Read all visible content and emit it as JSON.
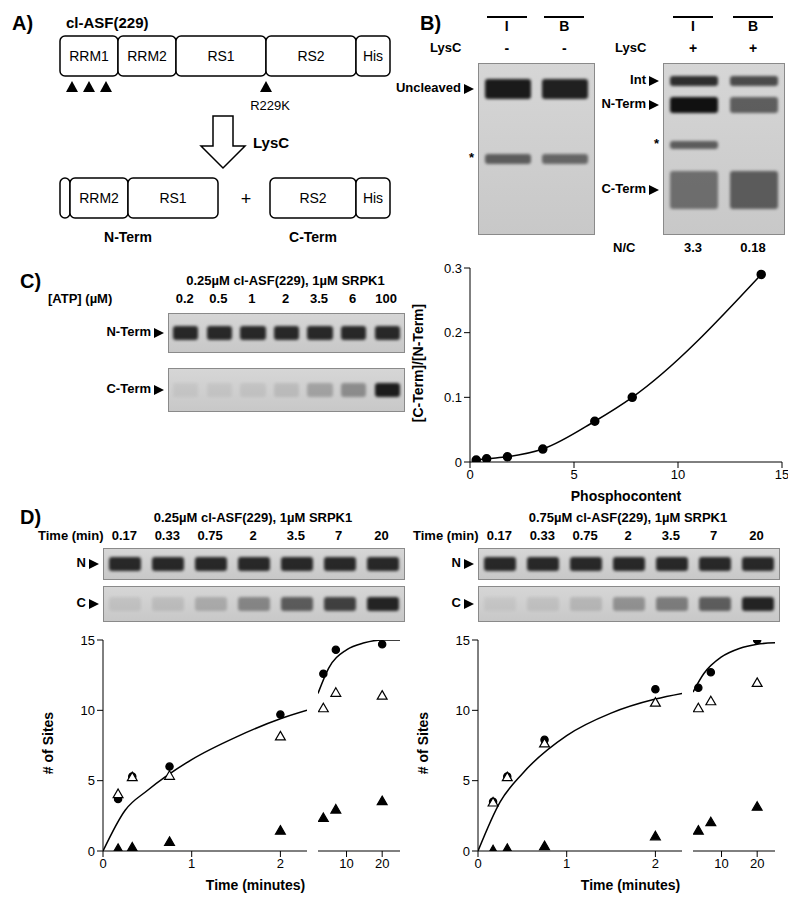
{
  "figure": {
    "panel_a": {
      "label": "A)",
      "construct": "cl-ASF(229)",
      "domains": [
        "RRM1",
        "RRM2",
        "RS1",
        "RS2",
        "His"
      ],
      "mutation": "R229K",
      "protease": "LysC",
      "products": [
        {
          "name": "N-Term",
          "domains": [
            "RRM2",
            "RS1"
          ]
        },
        {
          "name": "C-Term",
          "domains": [
            "RS2",
            "His"
          ]
        }
      ],
      "joiner": "+"
    },
    "panel_b": {
      "label": "B)",
      "gels": [
        {
          "lanes": [
            "I",
            "B"
          ],
          "treatment_label": "LysC",
          "treatment": [
            "-",
            "-"
          ],
          "bands": [
            "Uncleaved",
            "*"
          ]
        },
        {
          "lanes": [
            "I",
            "B"
          ],
          "treatment_label": "LysC",
          "treatment": [
            "+",
            "+"
          ],
          "bands": [
            "Int",
            "N-Term",
            "*",
            "C-Term"
          ],
          "ratio_label": "N/C",
          "ratios": [
            3.3,
            0.18
          ]
        }
      ]
    },
    "panel_c": {
      "label": "C)",
      "gel": {
        "title": "0.25µM cl-ASF(229), 1µM SRPK1",
        "lane_header": "[ATP] (µM)",
        "lanes": [
          0.2,
          0.5,
          1,
          2,
          3.5,
          6,
          100
        ],
        "rows": [
          "N-Term",
          "C-Term"
        ]
      }
    },
    "panel_d": {
      "label": "D)",
      "gels": [
        {
          "title": "0.25µM cl-ASF(229), 1µM SRPK1",
          "lane_header": "Time (min)",
          "lanes": [
            0.17,
            0.33,
            0.75,
            2,
            3.5,
            7,
            20
          ],
          "rows": [
            "N",
            "C"
          ]
        },
        {
          "title": "0.75µM cl-ASF(229), 1µM SRPK1",
          "lane_header": "Time (min)",
          "lanes": [
            0.17,
            0.33,
            0.75,
            2,
            3.5,
            7,
            20
          ],
          "rows": [
            "N",
            "C"
          ]
        }
      ]
    }
  },
  "chart_data": [
    {
      "type": "line",
      "xlabel": "Phosphocontent",
      "ylabel": "[C-Term]/[N-Term]",
      "xlim": [
        0,
        15
      ],
      "xticks": [
        0,
        5,
        10,
        15
      ],
      "ylim": [
        0,
        0.3
      ],
      "yticks": [
        0,
        0.1,
        0.2,
        0.3
      ],
      "series": [
        {
          "type": "line",
          "marker": "circle",
          "color": "#000000",
          "x": [
            0.3,
            0.8,
            1.8,
            3.5,
            6,
            7.8,
            14
          ],
          "values": [
            0.003,
            0.005,
            0.008,
            0.02,
            0.063,
            0.1,
            0.29
          ]
        }
      ]
    },
    {
      "type": "scatter",
      "xlabel": "Time (minutes)",
      "ylabel": "# of Sites",
      "xlim": [
        0,
        2.3
      ],
      "xticks": [
        0,
        1,
        2
      ],
      "ylim": [
        0,
        15
      ],
      "yticks": [
        0,
        5,
        10,
        15
      ],
      "series": [
        {
          "type": "line",
          "marker": "none",
          "color": "#000000",
          "x": [
            0,
            0.25,
            0.5,
            1,
            1.5,
            2,
            2.3
          ],
          "values": [
            0,
            2.9,
            4.3,
            6.5,
            8.1,
            9.4,
            10.0
          ]
        },
        {
          "type": "scatter",
          "marker": "circle",
          "color": "#000000",
          "x": [
            0.17,
            0.33,
            0.75,
            2
          ],
          "values": [
            3.7,
            5.3,
            6.0,
            9.7
          ]
        },
        {
          "type": "scatter",
          "marker": "triangle-open",
          "color": "#000000",
          "x": [
            0.17,
            0.33,
            0.75,
            2
          ],
          "values": [
            4.0,
            5.2,
            5.3,
            8.1
          ]
        },
        {
          "type": "scatter",
          "marker": "triangle",
          "color": "#000000",
          "x": [
            0.17,
            0.33,
            0.75,
            2
          ],
          "values": [
            0.1,
            0.2,
            0.6,
            1.4
          ]
        }
      ]
    },
    {
      "type": "scatter",
      "xlim": [
        2,
        25
      ],
      "xticks": [
        10,
        20
      ],
      "ylim": [
        0,
        15
      ],
      "tick_labels": "x",
      "series": [
        {
          "type": "line",
          "marker": "none",
          "color": "#000000",
          "x": [
            2,
            5,
            10,
            15,
            20,
            25
          ],
          "values": [
            11.2,
            13.0,
            14.3,
            14.8,
            15.0,
            15.0
          ]
        },
        {
          "type": "scatter",
          "marker": "circle",
          "color": "#000000",
          "x": [
            3.5,
            7,
            20
          ],
          "values": [
            12.6,
            14.3,
            14.7
          ]
        },
        {
          "type": "scatter",
          "marker": "triangle-open",
          "color": "#000000",
          "x": [
            3.5,
            7,
            20
          ],
          "values": [
            10.1,
            11.2,
            11.0
          ]
        },
        {
          "type": "scatter",
          "marker": "triangle",
          "color": "#000000",
          "x": [
            3.5,
            7,
            20
          ],
          "values": [
            2.3,
            2.9,
            3.5
          ]
        }
      ]
    },
    {
      "type": "scatter",
      "xlabel": "Time (minutes)",
      "ylabel": "# of Sites",
      "xlim": [
        0,
        2.3
      ],
      "xticks": [
        0,
        1,
        2
      ],
      "ylim": [
        0,
        15
      ],
      "yticks": [
        0,
        5,
        10,
        15
      ],
      "series": [
        {
          "type": "line",
          "marker": "none",
          "color": "#000000",
          "x": [
            0,
            0.25,
            0.5,
            1,
            1.5,
            2,
            2.3
          ],
          "values": [
            0,
            3.5,
            5.5,
            8.2,
            9.8,
            10.8,
            11.2
          ]
        },
        {
          "type": "scatter",
          "marker": "circle",
          "color": "#000000",
          "x": [
            0.17,
            0.33,
            0.75,
            2
          ],
          "values": [
            3.5,
            5.3,
            7.9,
            11.5
          ]
        },
        {
          "type": "scatter",
          "marker": "triangle-open",
          "color": "#000000",
          "x": [
            0.17,
            0.33,
            0.75,
            2
          ],
          "values": [
            3.4,
            5.2,
            7.6,
            10.5
          ]
        },
        {
          "type": "scatter",
          "marker": "triangle",
          "color": "#000000",
          "x": [
            0.17,
            0.33,
            0.75,
            2
          ],
          "values": [
            0.0,
            0.1,
            0.3,
            1.0
          ]
        }
      ]
    },
    {
      "type": "scatter",
      "xlim": [
        2,
        25
      ],
      "xticks": [
        10,
        20
      ],
      "ylim": [
        0,
        15
      ],
      "tick_labels": "x",
      "series": [
        {
          "type": "line",
          "marker": "none",
          "color": "#000000",
          "x": [
            2,
            5,
            10,
            15,
            20,
            25
          ],
          "values": [
            11.3,
            12.6,
            13.8,
            14.4,
            14.7,
            14.8
          ]
        },
        {
          "type": "scatter",
          "marker": "circle",
          "color": "#000000",
          "x": [
            3.5,
            7,
            20
          ],
          "values": [
            11.6,
            12.7,
            15.0
          ]
        },
        {
          "type": "scatter",
          "marker": "triangle-open",
          "color": "#000000",
          "x": [
            3.5,
            7,
            20
          ],
          "values": [
            10.1,
            10.6,
            11.9
          ]
        },
        {
          "type": "scatter",
          "marker": "triangle",
          "color": "#000000",
          "x": [
            3.5,
            7,
            20
          ],
          "values": [
            1.4,
            2.0,
            3.1
          ]
        }
      ]
    }
  ]
}
